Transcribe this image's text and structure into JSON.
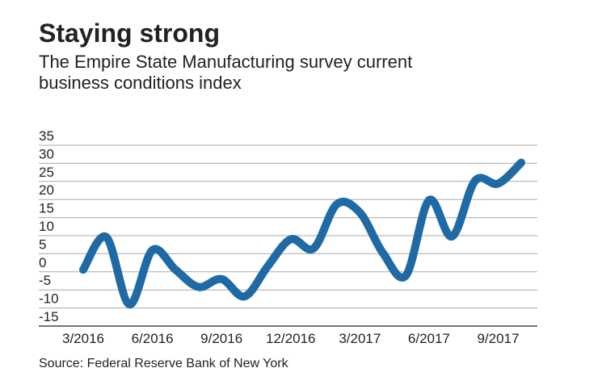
{
  "chart_data": {
    "type": "line",
    "title": "Staying strong",
    "subtitle": [
      "The Empire State Manufacturing survey current",
      "business conditions index"
    ],
    "source": "Source: Federal Reserve Bank of New York",
    "categories": [
      "3/2016",
      null,
      null,
      "6/2016",
      null,
      null,
      "9/2016",
      null,
      null,
      "12/2016",
      null,
      null,
      "3/2017",
      null,
      null,
      "6/2017",
      null,
      null,
      "9/2017",
      null
    ],
    "series": [
      {
        "name": "Current business conditions index",
        "color": "#1f6aa5",
        "values": [
          0.6,
          9.6,
          -9.0,
          6.0,
          0.6,
          -4.2,
          -2.0,
          -6.8,
          1.5,
          9.0,
          6.5,
          18.7,
          16.4,
          5.2,
          -1.0,
          19.8,
          9.8,
          25.2,
          24.4,
          30.2
        ]
      }
    ],
    "ylim": [
      -15,
      35
    ],
    "yticks": [
      -15,
      -10,
      -5,
      0,
      5,
      10,
      15,
      20,
      25,
      30,
      35
    ],
    "grid": true
  }
}
